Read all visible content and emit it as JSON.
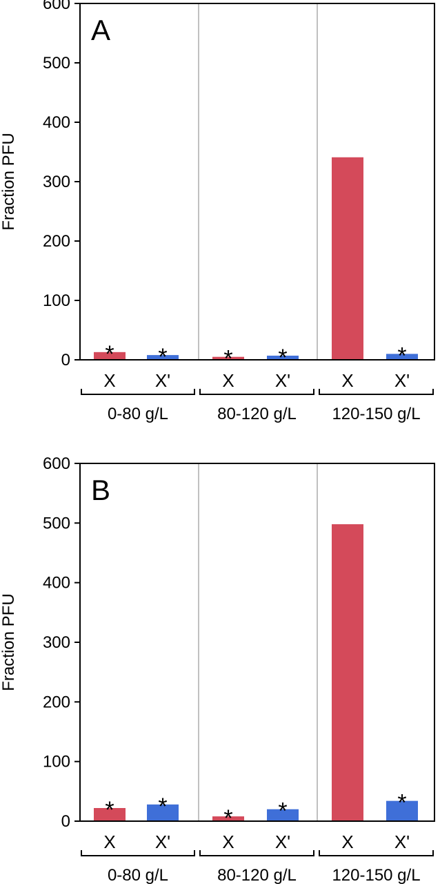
{
  "colors": {
    "red": "#d44a5a",
    "blue": "#3f6fd8",
    "divider": "#c0c0c0",
    "axis": "#000000"
  },
  "chart_data": [
    {
      "type": "bar",
      "panel": "A",
      "ylabel": "Fraction PFU",
      "ylim": [
        0,
        600
      ],
      "yticks": [
        "0",
        "100",
        "200",
        "300",
        "400",
        "500",
        "600"
      ],
      "groups": [
        "0-80 g/L",
        "80-120 g/L",
        "120-150 g/L"
      ],
      "categories": [
        "X",
        "X'",
        "X",
        "X'",
        "X",
        "X'"
      ],
      "values": [
        13,
        8,
        5,
        7,
        341,
        10
      ],
      "significant": [
        true,
        true,
        true,
        true,
        false,
        true
      ],
      "marker": "*"
    },
    {
      "type": "bar",
      "panel": "B",
      "ylabel": "Fraction PFU",
      "ylim": [
        0,
        600
      ],
      "yticks": [
        "0",
        "100",
        "200",
        "300",
        "400",
        "500",
        "600"
      ],
      "groups": [
        "0-80 g/L",
        "80-120 g/L",
        "120-150 g/L"
      ],
      "categories": [
        "X",
        "X'",
        "X",
        "X'",
        "X",
        "X'"
      ],
      "values": [
        22,
        28,
        8,
        20,
        498,
        34
      ],
      "significant": [
        true,
        true,
        true,
        true,
        false,
        true
      ],
      "marker": "*"
    }
  ]
}
